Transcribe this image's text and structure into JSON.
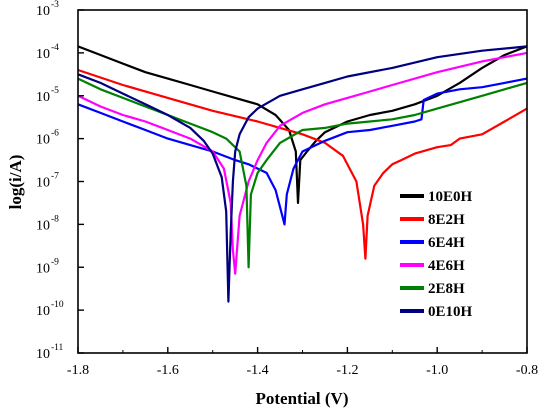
{
  "chart_data": {
    "type": "line",
    "title": "",
    "xlabel": "Potential (V)",
    "ylabel": "log(i/A)",
    "xlim": [
      -1.8,
      -0.8
    ],
    "ylim_exponent": [
      -11,
      -3
    ],
    "y_scale": "log",
    "grid": false,
    "legend_position": "inside-right",
    "x_ticks": [
      "-1.8",
      "-1.6",
      "-1.4",
      "-1.2",
      "-1.0",
      "-0.8"
    ],
    "y_ticks": [
      {
        "base": "10",
        "exp": "-11",
        "value": -11
      },
      {
        "base": "10",
        "exp": "-10",
        "value": -10
      },
      {
        "base": "10",
        "exp": "-9",
        "value": -9
      },
      {
        "base": "10",
        "exp": "-8",
        "value": -8
      },
      {
        "base": "10",
        "exp": "-7",
        "value": -7
      },
      {
        "base": "10",
        "exp": "-6",
        "value": -6
      },
      {
        "base": "10",
        "exp": "-5",
        "value": -5
      },
      {
        "base": "10",
        "exp": "-4",
        "value": -4
      },
      {
        "base": "10",
        "exp": "-3",
        "value": -3
      }
    ],
    "series": [
      {
        "name": "10E0H",
        "color": "#000000",
        "x": [
          -1.8,
          -1.75,
          -1.7,
          -1.65,
          -1.6,
          -1.55,
          -1.5,
          -1.45,
          -1.4,
          -1.36,
          -1.33,
          -1.315,
          -1.31,
          -1.305,
          -1.29,
          -1.27,
          -1.25,
          -1.2,
          -1.15,
          -1.1,
          -1.05,
          -1.0,
          -0.95,
          -0.9,
          -0.85,
          -0.8
        ],
        "log_y": [
          -3.85,
          -4.05,
          -4.25,
          -4.45,
          -4.6,
          -4.75,
          -4.9,
          -5.05,
          -5.2,
          -5.45,
          -5.8,
          -6.3,
          -7.5,
          -6.5,
          -6.3,
          -6.05,
          -5.85,
          -5.6,
          -5.45,
          -5.35,
          -5.2,
          -5.0,
          -4.7,
          -4.35,
          -4.05,
          -3.85
        ]
      },
      {
        "name": "8E2H",
        "color": "#ff0000",
        "x": [
          -1.8,
          -1.7,
          -1.6,
          -1.5,
          -1.4,
          -1.35,
          -1.3,
          -1.25,
          -1.21,
          -1.18,
          -1.165,
          -1.16,
          -1.155,
          -1.14,
          -1.12,
          -1.1,
          -1.08,
          -1.05,
          -1.0,
          -0.97,
          -0.95,
          -0.9,
          -0.85,
          -0.8
        ],
        "log_y": [
          -4.4,
          -4.75,
          -5.05,
          -5.35,
          -5.6,
          -5.75,
          -5.9,
          -6.1,
          -6.4,
          -7.0,
          -8.0,
          -8.8,
          -7.8,
          -7.1,
          -6.8,
          -6.6,
          -6.5,
          -6.35,
          -6.2,
          -6.15,
          -6.0,
          -5.9,
          -5.6,
          -5.3
        ]
      },
      {
        "name": "6E4H",
        "color": "#0000ff",
        "x": [
          -1.8,
          -1.75,
          -1.7,
          -1.65,
          -1.6,
          -1.55,
          -1.5,
          -1.45,
          -1.42,
          -1.38,
          -1.36,
          -1.345,
          -1.34,
          -1.335,
          -1.32,
          -1.3,
          -1.25,
          -1.2,
          -1.15,
          -1.1,
          -1.05,
          -1.035,
          -1.03,
          -1.0,
          -0.95,
          -0.9,
          -0.85,
          -0.8
        ],
        "log_y": [
          -5.2,
          -5.4,
          -5.6,
          -5.8,
          -6.0,
          -6.15,
          -6.3,
          -6.5,
          -6.6,
          -6.8,
          -7.2,
          -7.8,
          -8.0,
          -7.3,
          -6.7,
          -6.3,
          -6.05,
          -5.85,
          -5.8,
          -5.7,
          -5.6,
          -5.55,
          -5.1,
          -4.95,
          -4.85,
          -4.8,
          -4.7,
          -4.6
        ]
      },
      {
        "name": "4E6H",
        "color": "#ff00ff",
        "x": [
          -1.8,
          -1.75,
          -1.7,
          -1.65,
          -1.6,
          -1.55,
          -1.5,
          -1.475,
          -1.46,
          -1.455,
          -1.45,
          -1.44,
          -1.42,
          -1.4,
          -1.38,
          -1.35,
          -1.3,
          -1.25,
          -1.2,
          -1.15,
          -1.1,
          -1.0,
          -0.9,
          -0.8
        ],
        "log_y": [
          -5.0,
          -5.25,
          -5.45,
          -5.6,
          -5.8,
          -6.0,
          -6.3,
          -6.7,
          -7.5,
          -8.6,
          -9.15,
          -7.8,
          -7.0,
          -6.5,
          -6.1,
          -5.7,
          -5.4,
          -5.2,
          -5.05,
          -4.9,
          -4.75,
          -4.45,
          -4.2,
          -4.0
        ]
      },
      {
        "name": "2E8H",
        "color": "#008000",
        "x": [
          -1.8,
          -1.75,
          -1.7,
          -1.65,
          -1.6,
          -1.55,
          -1.5,
          -1.47,
          -1.44,
          -1.425,
          -1.42,
          -1.415,
          -1.4,
          -1.38,
          -1.35,
          -1.3,
          -1.25,
          -1.2,
          -1.15,
          -1.1,
          -1.05,
          -1.0,
          -0.95,
          -0.9,
          -0.85,
          -0.8
        ],
        "log_y": [
          -4.6,
          -4.85,
          -5.05,
          -5.25,
          -5.45,
          -5.65,
          -5.85,
          -6.0,
          -6.3,
          -7.1,
          -9.0,
          -7.3,
          -6.8,
          -6.5,
          -6.1,
          -5.8,
          -5.75,
          -5.65,
          -5.6,
          -5.55,
          -5.45,
          -5.3,
          -5.15,
          -5.0,
          -4.85,
          -4.7
        ]
      },
      {
        "name": "0E10H",
        "color": "#000080",
        "x": [
          -1.8,
          -1.75,
          -1.7,
          -1.65,
          -1.6,
          -1.55,
          -1.52,
          -1.5,
          -1.48,
          -1.47,
          -1.465,
          -1.46,
          -1.455,
          -1.45,
          -1.44,
          -1.42,
          -1.4,
          -1.35,
          -1.3,
          -1.25,
          -1.2,
          -1.1,
          -1.0,
          -0.9,
          -0.8
        ],
        "log_y": [
          -4.5,
          -4.7,
          -4.95,
          -5.2,
          -5.45,
          -5.75,
          -6.05,
          -6.35,
          -6.9,
          -7.7,
          -9.8,
          -8.2,
          -7.0,
          -6.3,
          -5.9,
          -5.5,
          -5.3,
          -5.0,
          -4.85,
          -4.7,
          -4.55,
          -4.35,
          -4.1,
          -3.95,
          -3.85
        ]
      }
    ]
  }
}
